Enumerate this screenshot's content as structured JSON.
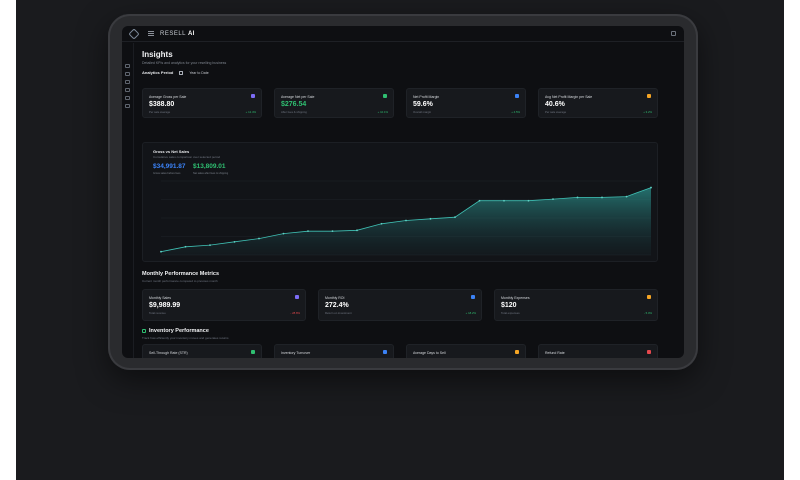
{
  "app": {
    "brand_prefix": "RESELL ",
    "brand_suffix": "AI"
  },
  "page": {
    "title": "Insights",
    "subtitle": "Detailed KPIs and analytics for your reselling business",
    "period_label": "Analytics Period",
    "period_value": "Year to Date"
  },
  "kpis": [
    {
      "title": "Average Gross per Sale",
      "value": "$388.80",
      "sub": "Per sale average",
      "trend": "+ 12.4%",
      "icon": "dollar-icon",
      "color": "#7c6cf5"
    },
    {
      "title": "Average Net per Sale",
      "value": "$276.54",
      "sub": "After fees & shipping",
      "trend": "+ 10.1%",
      "icon": "trend-icon",
      "color": "#2fbf71"
    },
    {
      "title": "Net Profit Margin",
      "value": "59.6%",
      "sub": "Overall margin",
      "trend": "+ 4.5%",
      "icon": "percent-icon",
      "color": "#3b82f6"
    },
    {
      "title": "Avg Net Profit Margin per Sale",
      "value": "40.6%",
      "sub": "Per sale average",
      "trend": "+ 3.2%",
      "icon": "chart-icon",
      "color": "#f5a524"
    }
  ],
  "chart": {
    "title": "Gross vs Net Sales",
    "subtitle": "Cumulative sales comparison over selected period",
    "gross_value": "$34,991.87",
    "gross_caption": "Gross sales before fees",
    "net_value": "$13,809.01",
    "net_caption": "Net sales after fees & shipping",
    "gross_color": "#3b82f6",
    "net_color": "#2fbf71"
  },
  "chart_data": {
    "type": "area",
    "title": "Gross vs Net Sales",
    "series": [
      {
        "name": "Gross vs Net Sales",
        "values": [
          0.4,
          1.0,
          1.2,
          1.6,
          2.0,
          2.6,
          2.9,
          2.9,
          3.0,
          3.8,
          4.2,
          4.4,
          4.6,
          6.6,
          6.6,
          6.6,
          6.8,
          7.0,
          7.0,
          7.1,
          8.2
        ]
      }
    ],
    "ylim": [
      0,
      9
    ]
  },
  "monthly": {
    "title": "Monthly Performance Metrics",
    "subtitle": "Current month performance compared to previous month",
    "cards": [
      {
        "title": "Monthly Sales",
        "value": "$9,989.99",
        "sub": "Total revenue",
        "trend": "- 28.8%",
        "down": true,
        "icon": "dollar-icon",
        "color": "#7c6cf5"
      },
      {
        "title": "Monthly ROI",
        "value": "272.4%",
        "sub": "Return on investment",
        "trend": "+ 18.2%",
        "down": false,
        "icon": "trend-icon",
        "color": "#3b82f6"
      },
      {
        "title": "Monthly Expenses",
        "value": "$120",
        "sub": "Total expenses",
        "trend": "- 5.0%",
        "down": false,
        "icon": "receipt-icon",
        "color": "#f5a524"
      }
    ]
  },
  "inventory": {
    "title": "Inventory Performance",
    "subtitle": "Track how efficiently your inventory moves and generates returns",
    "cards": [
      {
        "title": "Sell-Through Rate (STR)",
        "icon": "box-icon",
        "color": "#2fbf71"
      },
      {
        "title": "Inventory Turnover",
        "icon": "refresh-icon",
        "color": "#3b82f6"
      },
      {
        "title": "Average Days to Sell",
        "icon": "calendar-icon",
        "color": "#f5a524"
      },
      {
        "title": "Refund Rate",
        "icon": "undo-icon",
        "color": "#e5484d"
      }
    ]
  }
}
